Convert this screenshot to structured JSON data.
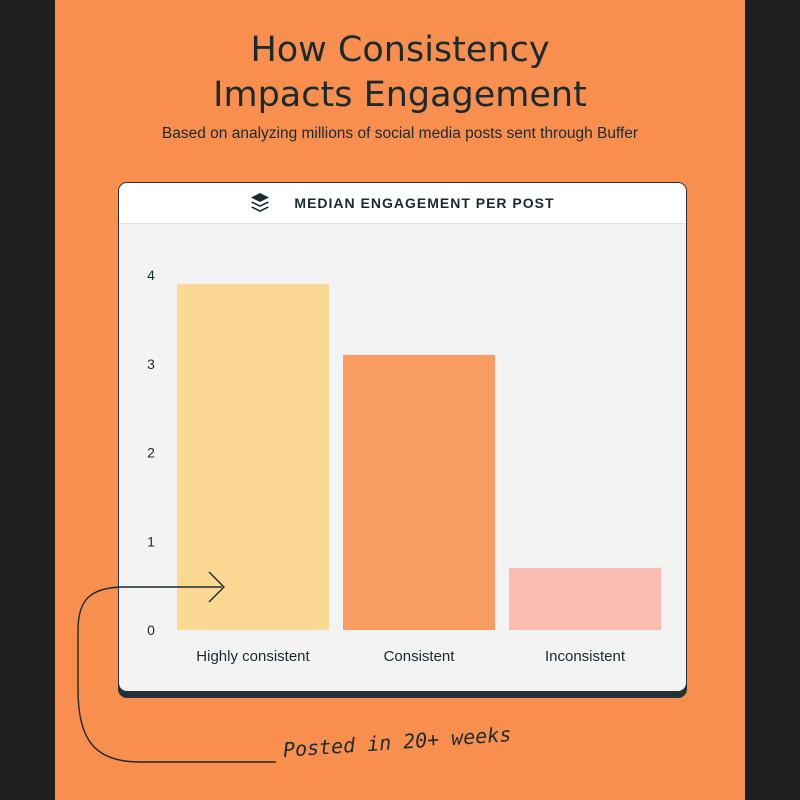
{
  "header": {
    "title": "How Consistency\nImpacts Engagement",
    "subtitle": "Based on analyzing millions of social media posts sent through Buffer"
  },
  "card": {
    "title": "MEDIAN ENGAGEMENT PER POST",
    "logo_icon": "buffer-stack-icon"
  },
  "annotation": {
    "text": "Posted in 20+ weeks"
  },
  "colors": {
    "background": "#f98f4e",
    "frame": "#1f1f1f",
    "card": "#f3f3f3",
    "text": "#1b2a2f"
  },
  "chart_data": {
    "type": "bar",
    "title": "MEDIAN ENGAGEMENT PER POST",
    "categories": [
      "Highly consistent",
      "Consistent",
      "Inconsistent"
    ],
    "values": [
      3.9,
      3.1,
      0.7
    ],
    "bar_colors": [
      "#fcd993",
      "#f89c61",
      "#fabcb0"
    ],
    "ylim": [
      0,
      4
    ],
    "yticks": [
      0,
      1,
      2,
      3,
      4
    ],
    "xlabel": "",
    "ylabel": "",
    "grid": false,
    "legend": "none"
  }
}
